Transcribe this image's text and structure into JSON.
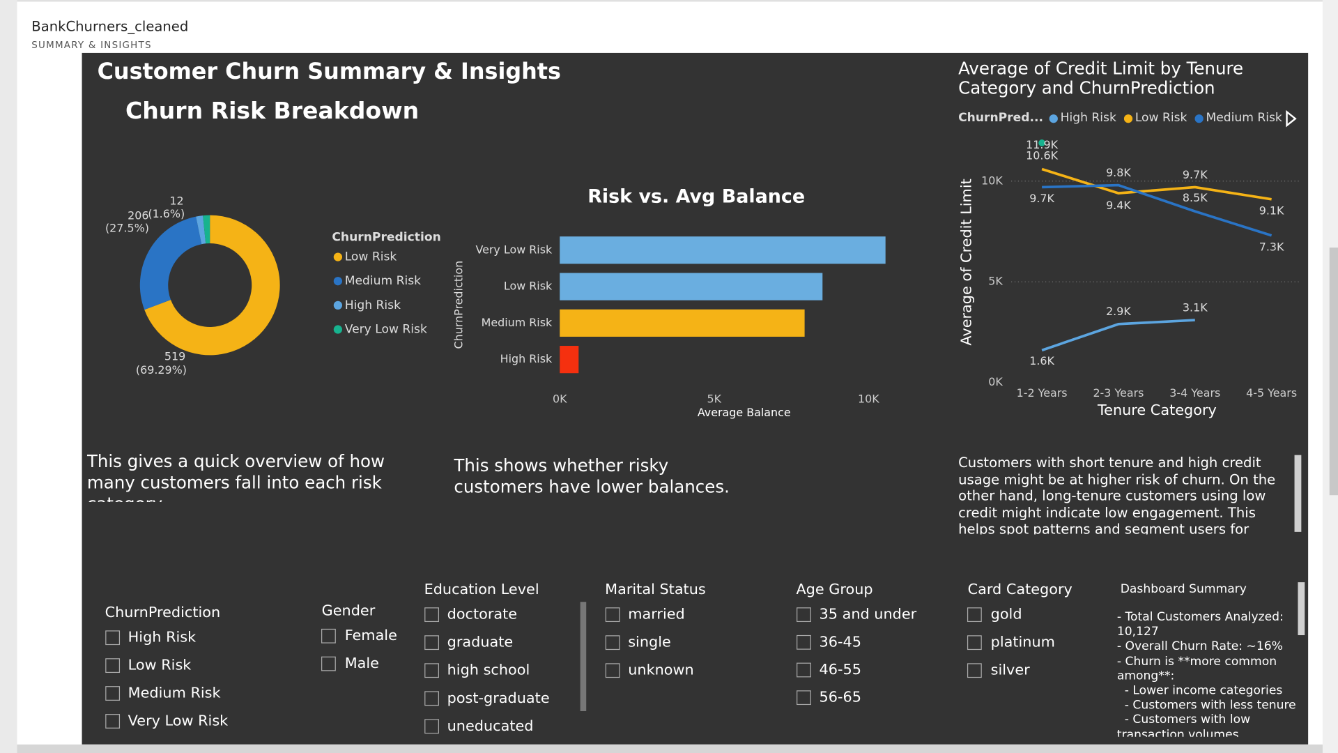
{
  "header": {
    "title": "BankChurners_cleaned",
    "subtitle": "SUMMARY & INSIGHTS"
  },
  "page_title": "Customer Churn Summary & Insights",
  "chart_data": [
    {
      "type": "donut",
      "title": "Churn Risk Breakdown",
      "legend_title": "ChurnPrediction",
      "categories": [
        "Low Risk",
        "Medium Risk",
        "High Risk",
        "Very Low Risk"
      ],
      "values": [
        519,
        206,
        12,
        12
      ],
      "percent_labels": [
        "(69.29%)",
        "(27.5%)",
        "(1.6%)",
        null
      ],
      "colors": [
        "#f5b316",
        "#2a74c5",
        "#5ca5e0",
        "#17b38f"
      ]
    },
    {
      "type": "hbar",
      "title": "Risk vs. Avg Balance",
      "x_label": "Average Balance",
      "y_label": "ChurnPrediction",
      "categories": [
        "Very Low Risk",
        "Low Risk",
        "Medium Risk",
        "High Risk"
      ],
      "values": [
        10550,
        8510,
        7930,
        610
      ],
      "colors": [
        "#6aaee0",
        "#6aaee0",
        "#f5b316",
        "#f5300f"
      ],
      "xlim": [
        0,
        11000
      ],
      "xticks": [
        {
          "value": 0,
          "label": "0K"
        },
        {
          "value": 5000,
          "label": "5K"
        },
        {
          "value": 10000,
          "label": "10K"
        }
      ]
    },
    {
      "type": "line",
      "title": "Average of Credit Limit by Tenure Category and ChurnPrediction",
      "legend_title": "ChurnPred...",
      "x_label": "Tenure Category",
      "y_label": "Average of Credit Limit",
      "categories": [
        "1-2 Years",
        "2-3 Years",
        "3-4 Years",
        "4-5 Years"
      ],
      "series": [
        {
          "name": "High Risk",
          "color": "#5ca5e0",
          "values": [
            1600,
            2900,
            3100,
            null
          ],
          "value_labels": [
            "1.6K",
            "2.9K",
            "3.1K",
            null
          ]
        },
        {
          "name": "Low Risk",
          "color": "#f5b316",
          "values": [
            10600,
            9400,
            9700,
            9100
          ],
          "value_labels": [
            "10.6K",
            "9.4K",
            "9.7K",
            "9.1K"
          ]
        },
        {
          "name": "Medium Risk",
          "color": "#2a74c5",
          "values": [
            9700,
            9800,
            8500,
            7300
          ],
          "value_labels": [
            "9.7K",
            "9.8K",
            "8.5K",
            "7.3K"
          ]
        },
        {
          "color": "#17b38f",
          "values": [
            11900,
            null,
            null,
            null
          ],
          "value_labels": [
            "11.9K",
            null,
            null,
            null
          ]
        }
      ],
      "ylim": [
        0,
        12000
      ],
      "yticks": [
        {
          "value": 0,
          "label": "0K"
        },
        {
          "value": 5000,
          "label": "5K"
        },
        {
          "value": 10000,
          "label": "10K"
        }
      ],
      "grid": true
    }
  ],
  "notes": [
    "This gives a quick overview of how many customers fall into each risk category.",
    "This shows whether risky customers have lower balances.",
    "Customers with short tenure and high credit usage might be at higher risk of churn. On the other hand, long-tenure customers using low credit might indicate low engagement. This helps spot patterns and segment users for proactive retention."
  ],
  "filters": [
    {
      "title": "ChurnPrediction",
      "options": [
        "High Risk",
        "Low Risk",
        "Medium Risk",
        "Very Low Risk"
      ]
    },
    {
      "title": "Gender",
      "options": [
        "Female",
        "Male"
      ]
    },
    {
      "title": "Education Level",
      "options": [
        "doctorate",
        "graduate",
        "high school",
        "post-graduate",
        "uneducated"
      ]
    },
    {
      "title": "Marital Status",
      "options": [
        "married",
        "single",
        "unknown"
      ]
    },
    {
      "title": "Age Group",
      "options": [
        "35 and under",
        "36-45",
        "46-55",
        "56-65"
      ]
    },
    {
      "title": "Card Category",
      "options": [
        "gold",
        "platinum",
        "silver"
      ]
    }
  ],
  "summary": {
    "title": "Dashboard Summary",
    "lines": [
      "- Total Customers Analyzed: 10,127",
      "- Overall Churn Rate: ~16%",
      "- Churn is **more common among**:",
      "  - Lower income categories",
      "  - Customers with less tenure",
      "  - Customers with low transaction volumes"
    ]
  }
}
